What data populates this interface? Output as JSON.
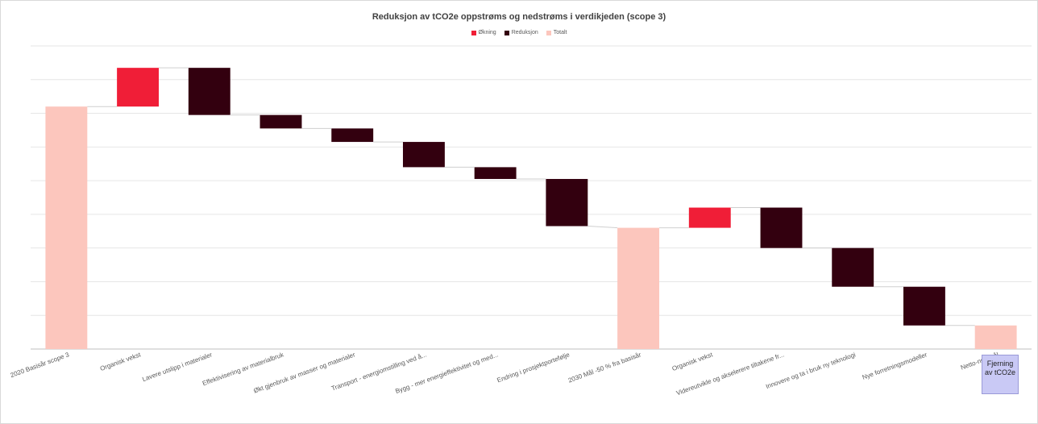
{
  "chart_data": {
    "type": "waterfall",
    "title": "Reduksjon av tCO2e oppstrøms og nedstrøms i verdikjeden (scope 3)",
    "legend": [
      {
        "name": "Økning",
        "color": "#f01e37"
      },
      {
        "name": "Reduksjon",
        "color": "#33000f"
      },
      {
        "name": "Totalt",
        "color": "#fcc6bd"
      }
    ],
    "legend_position": "top",
    "grid": true,
    "categories": [
      "2020 Basisår scope 3",
      "Organisk vekst",
      "Lavere utslipp i materialer",
      "Effektivisering av materialbruk",
      "Økt gjenbruk av masser og materialer",
      "Transport - energiomstilling ved å...",
      "Bygg - mer energieffektivitet og med...",
      "Endring i prosjektportefølje",
      "2030 Mål -50 % fra basisår",
      "Organisk vekst",
      "Videreutvikle og akselerere tiltakene fr...",
      "Innovere og ta i bruk ny teknologi",
      "Nye forretningsmodeller",
      "Netto-null mål"
    ],
    "kinds": [
      "total",
      "increase",
      "decrease",
      "decrease",
      "decrease",
      "decrease",
      "decrease",
      "decrease",
      "total",
      "increase",
      "decrease",
      "decrease",
      "decrease",
      "total"
    ],
    "values": [
      72,
      11.5,
      -14,
      -4,
      -4,
      -7.5,
      -3.5,
      -14,
      36,
      6,
      -12,
      -11.5,
      -11.5,
      7
    ],
    "ylim": [
      0,
      90
    ],
    "annotation": "Fjerning av tCO2e"
  }
}
